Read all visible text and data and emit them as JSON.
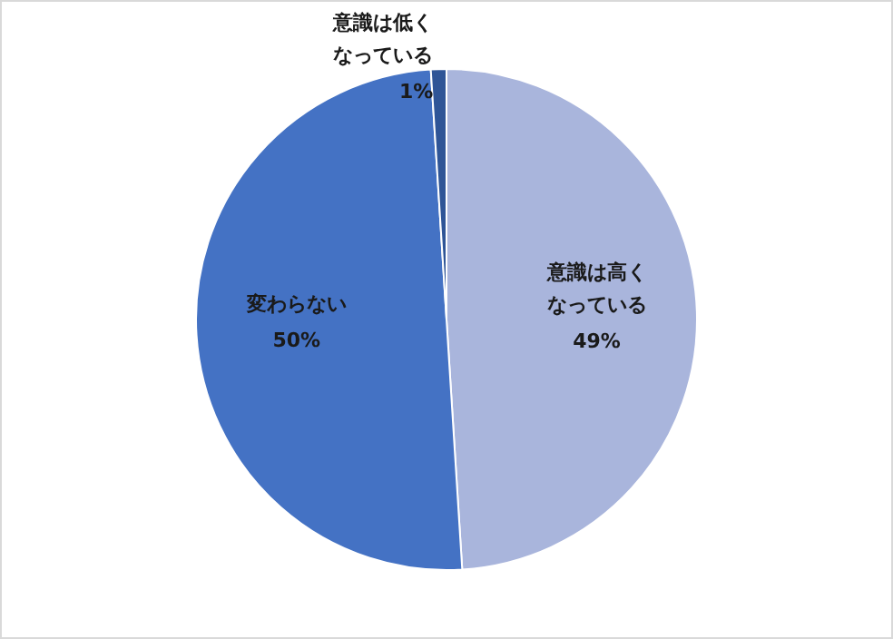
{
  "chart_data": {
    "type": "pie",
    "categories": [
      "意識は高くなっている",
      "変わらない",
      "意識は低くなっている"
    ],
    "values": [
      49,
      50,
      1
    ],
    "colors": [
      "#a9b5dc",
      "#4472c4",
      "#2f5597"
    ],
    "value_labels": [
      "49%",
      "50%",
      "1%"
    ]
  }
}
